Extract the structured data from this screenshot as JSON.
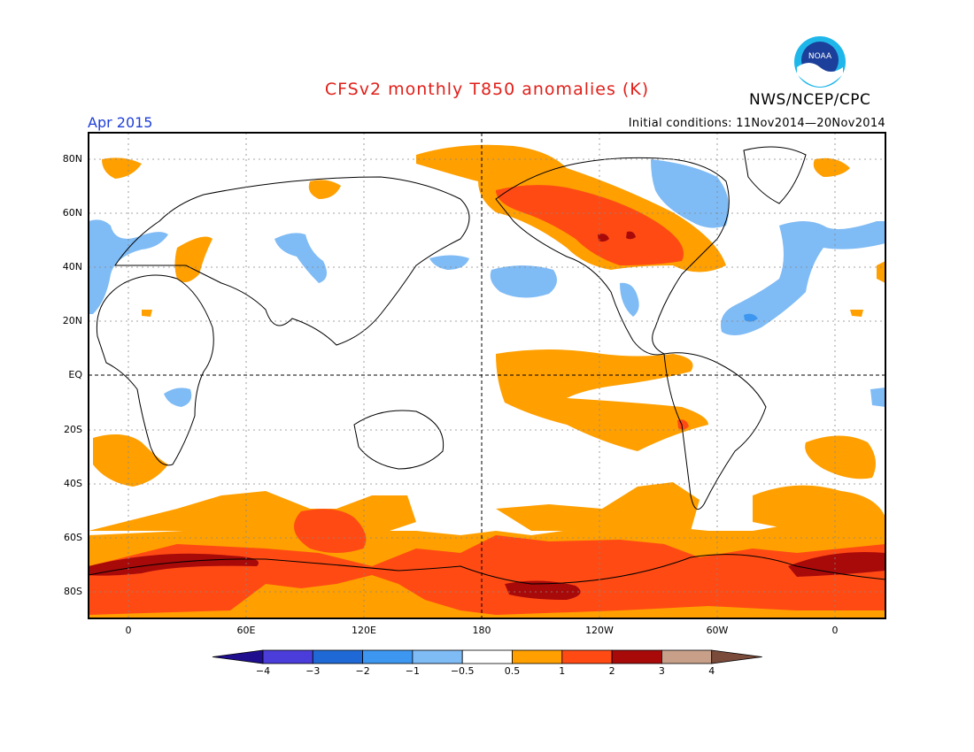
{
  "title": "CFSv2 monthly T850 anomalies (K)",
  "organization": "NWS/NCEP/CPC",
  "period": "Apr 2015",
  "initial_conditions": "Initial conditions: 11Nov2014—20Nov2014",
  "logo": {
    "icon": "noaa-logo-icon",
    "text": "NOAA",
    "colors": {
      "outer": "#1fb6ea",
      "inner": "#1b3f9a",
      "bird": "#ffffff"
    }
  },
  "map": {
    "projection": "cylindrical-equidistant, centered 180",
    "lat_labels": [
      "80N",
      "60N",
      "40N",
      "20N",
      "EQ",
      "20S",
      "40S",
      "60S",
      "80S"
    ],
    "lon_labels": [
      "0",
      "60E",
      "120E",
      "180",
      "120W",
      "60W",
      "0"
    ],
    "grid": "dotted",
    "reference_lines": [
      "EQ",
      "180"
    ]
  },
  "colorbar": {
    "ticks": [
      "−4",
      "−3",
      "−2",
      "−1",
      "−0.5",
      "0.5",
      "1",
      "2",
      "3",
      "4"
    ],
    "colors": [
      "#1f0f8f",
      "#4a3dd9",
      "#1e69d6",
      "#3d96f0",
      "#7fbbf5",
      "#ffffff",
      "#ff9f00",
      "#ff4a14",
      "#a80a0a",
      "#c8a08a",
      "#7a4a3a"
    ]
  }
}
